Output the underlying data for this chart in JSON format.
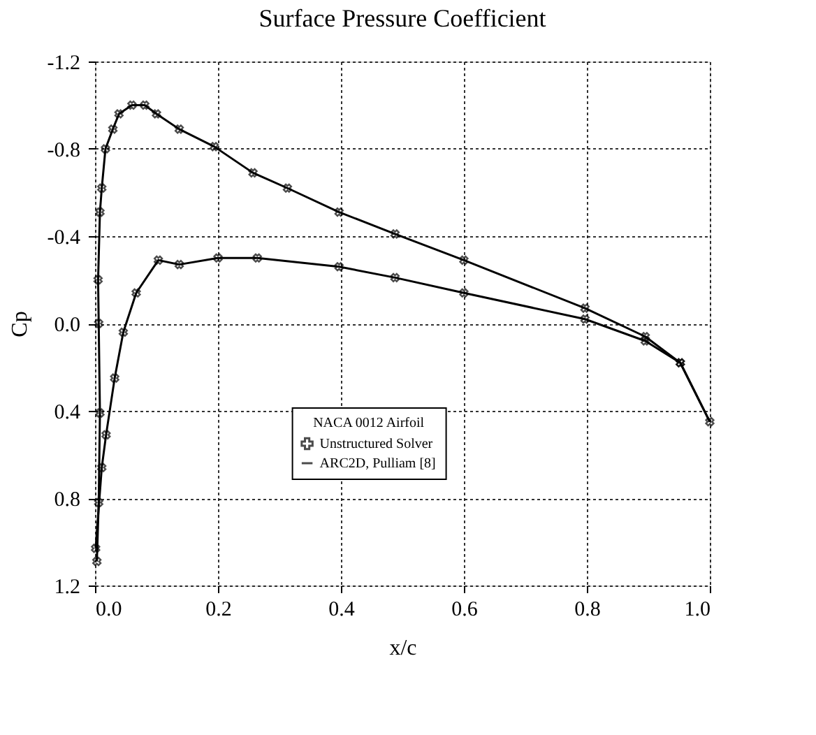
{
  "chart_data": {
    "type": "line",
    "title": "Surface Pressure Coefficient",
    "xlabel": "x/c",
    "ylabel": "Cp",
    "legend_title": "NACA 0012 Airfoil",
    "series": [
      {
        "name": "Unstructured Solver",
        "type": "scatter",
        "marker": "cross",
        "color": "#000000",
        "x": [
          1.0,
          0.952,
          0.895,
          0.797,
          0.6,
          0.488,
          0.397,
          0.313,
          0.257,
          0.194,
          0.137,
          0.1,
          0.081,
          0.06,
          0.039,
          0.029,
          0.017,
          0.011,
          0.008,
          0.005,
          0.006,
          0.008,
          0.006,
          0.003,
          0.001,
          0.011,
          0.018,
          0.032,
          0.046,
          0.067,
          0.103,
          0.137,
          0.2,
          0.264,
          0.397,
          0.488,
          0.6,
          0.797,
          0.895,
          0.952
        ],
        "values": [
          0.45,
          0.18,
          0.06,
          -0.07,
          -0.29,
          -0.41,
          -0.51,
          -0.62,
          -0.69,
          -0.81,
          -0.89,
          -0.96,
          -1.0,
          -1.0,
          -0.96,
          -0.89,
          -0.8,
          -0.62,
          -0.51,
          -0.2,
          0.0,
          0.41,
          0.82,
          1.09,
          1.03,
          0.66,
          0.51,
          0.25,
          0.04,
          -0.14,
          -0.29,
          -0.27,
          -0.3,
          -0.3,
          -0.26,
          -0.21,
          -0.14,
          -0.02,
          0.08,
          0.18
        ]
      },
      {
        "name": "ARC2D, Pulliam [8]",
        "type": "line",
        "marker": "none",
        "line_style": "solid",
        "color": "#000000",
        "x": [
          0.003,
          0.006,
          0.008,
          0.006,
          0.005,
          0.008,
          0.011,
          0.017,
          0.029,
          0.039,
          0.06,
          0.081,
          0.1,
          0.137,
          0.194,
          0.257,
          0.313,
          0.397,
          0.488,
          0.6,
          0.797,
          0.895,
          0.952,
          1.0
        ],
        "values": [
          1.09,
          0.82,
          0.41,
          0.0,
          -0.2,
          -0.51,
          -0.62,
          -0.8,
          -0.89,
          -0.96,
          -1.0,
          -1.0,
          -0.96,
          -0.89,
          -0.81,
          -0.69,
          -0.62,
          -0.51,
          -0.41,
          -0.29,
          -0.07,
          0.06,
          0.18,
          0.45
        ]
      },
      {
        "type": "line",
        "marker": "none",
        "line_style": "solid",
        "color": "#000000",
        "x": [
          0.001,
          0.011,
          0.018,
          0.032,
          0.046,
          0.067,
          0.103,
          0.137,
          0.2,
          0.264,
          0.397,
          0.488,
          0.6,
          0.797,
          0.895,
          0.952,
          1.0
        ],
        "values": [
          1.03,
          0.66,
          0.51,
          0.25,
          0.04,
          -0.14,
          -0.29,
          -0.27,
          -0.3,
          -0.3,
          -0.26,
          -0.21,
          -0.14,
          -0.02,
          0.08,
          0.18,
          0.45
        ]
      }
    ],
    "xlim": [
      0,
      1.0
    ],
    "xticks": [
      {
        "value": 0,
        "label": "0.0"
      },
      0.2,
      0.4,
      0.6,
      0.8,
      {
        "value": 1,
        "label": "1.0"
      }
    ],
    "ylim": [
      1.2,
      -1.2
    ],
    "yticks": [
      -1.2,
      -0.8,
      -0.4,
      {
        "value": 0,
        "label": "0.0"
      },
      0.4,
      0.8,
      1.2
    ],
    "grid": true,
    "legend": "bottom"
  }
}
